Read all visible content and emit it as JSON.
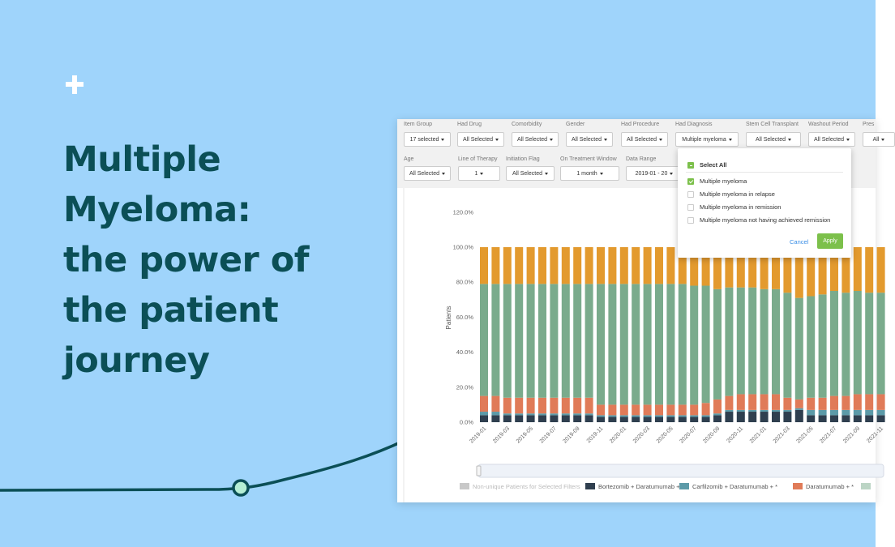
{
  "headline": [
    "Multiple",
    "Myeloma:",
    "the power of",
    "the patient",
    "journey"
  ],
  "filters": {
    "row1": [
      {
        "label": "Item Group",
        "value": "17 selected"
      },
      {
        "label": "Had Drug",
        "value": "All Selected"
      },
      {
        "label": "Comorbidity",
        "value": "All Selected"
      },
      {
        "label": "Gender",
        "value": "All Selected"
      },
      {
        "label": "Had Procedure",
        "value": "All Selected"
      },
      {
        "label": "Had Diagnosis",
        "value": "Multiple myeloma"
      },
      {
        "label": "Stem Cell Transplant",
        "value": "All Selected"
      },
      {
        "label": "Washout Period",
        "value": "All Selected"
      },
      {
        "label": "Pres",
        "value": "All"
      }
    ],
    "row2": [
      {
        "label": "Age",
        "value": "All Selected"
      },
      {
        "label": "Line of Therapy",
        "value": "1"
      },
      {
        "label": "Initiation Flag",
        "value": "All Selected"
      },
      {
        "label": "On Treatment Window",
        "value": "1 month"
      },
      {
        "label": "Data Range",
        "value": "2019-01 - 20"
      }
    ]
  },
  "dropdown": {
    "select_all": "Select All",
    "options": [
      "Multiple myeloma",
      "Multiple myeloma in relapse",
      "Multiple myeloma in remission",
      "Multiple myeloma not having achieved remission"
    ],
    "checked": [
      true,
      false,
      false,
      false
    ],
    "cancel": "Cancel",
    "apply": "Apply"
  },
  "chart_data": {
    "type": "stacked_bar",
    "y_label": "Patients",
    "categories": [
      "2019-01",
      null,
      "2019-03",
      null,
      "2019-05",
      null,
      "2019-07",
      null,
      "2019-09",
      null,
      "2019-11",
      null,
      "2020-01",
      null,
      "2020-03",
      null,
      "2020-05",
      null,
      "2020-07",
      null,
      "2020-09",
      null,
      "2020-11",
      null,
      "2021-01",
      null,
      "2021-03",
      null,
      "2021-05",
      null,
      "2021-07",
      null,
      "2021-09",
      null,
      "2021-11"
    ],
    "ylim": [
      0,
      120
    ],
    "yticks": [
      {
        "value": 0,
        "label": "0.0%"
      },
      {
        "value": 20,
        "label": "20.0%"
      },
      {
        "value": 40,
        "label": "40.0%"
      },
      {
        "value": 60,
        "label": "60.0%"
      },
      {
        "value": 80,
        "label": "80.0%"
      },
      {
        "value": 100,
        "label": "100.0%"
      },
      {
        "value": 120,
        "label": "120.0%"
      }
    ],
    "grid": false,
    "hidden_series": [
      {
        "name": "Non-unique Patients for Selected Filters",
        "color": "#c8c8c8"
      }
    ],
    "series": [
      {
        "name": "Bortezomib + Daratumumab + *",
        "color": "#2f3f4f",
        "values": [
          4,
          4,
          4,
          4,
          4,
          4,
          4,
          4,
          4,
          4,
          3,
          3,
          3,
          3,
          3,
          3,
          3,
          3,
          3,
          3,
          4,
          6,
          6,
          6,
          6,
          6,
          6,
          7,
          4,
          4,
          4,
          4,
          4,
          4,
          4
        ]
      },
      {
        "name": "Carfilzomib + Daratumumab + *",
        "color": "#5c9aa8",
        "values": [
          2,
          2,
          1,
          1,
          1,
          1,
          1,
          1,
          1,
          1,
          1,
          1,
          1,
          1,
          1,
          1,
          1,
          1,
          1,
          1,
          1,
          1,
          1,
          1,
          1,
          1,
          1,
          1,
          3,
          3,
          3,
          3,
          3,
          3,
          3
        ]
      },
      {
        "name": "Daratumumab + *",
        "color": "#e07b58",
        "values": [
          9,
          9,
          9,
          9,
          9,
          9,
          9,
          9,
          9,
          9,
          6,
          6,
          6,
          6,
          6,
          6,
          6,
          6,
          6,
          7,
          8,
          8,
          9,
          9,
          9,
          9,
          7,
          5,
          7,
          7,
          8,
          8,
          9,
          9,
          9
        ]
      },
      {
        "color": "#7aab8c",
        "values": [
          64,
          64,
          65,
          65,
          65,
          65,
          65,
          65,
          65,
          65,
          69,
          69,
          69,
          69,
          69,
          69,
          69,
          69,
          68,
          67,
          63,
          62,
          61,
          61,
          60,
          60,
          60,
          58,
          58,
          59,
          60,
          59,
          59,
          58,
          58
        ]
      },
      {
        "color": "#e39a2e",
        "values": [
          21,
          21,
          21,
          21,
          21,
          21,
          21,
          21,
          21,
          21,
          21,
          21,
          21,
          21,
          21,
          21,
          21,
          21,
          22,
          22,
          24,
          23,
          23,
          23,
          24,
          24,
          26,
          29,
          28,
          27,
          25,
          26,
          25,
          26,
          26
        ]
      }
    ]
  }
}
